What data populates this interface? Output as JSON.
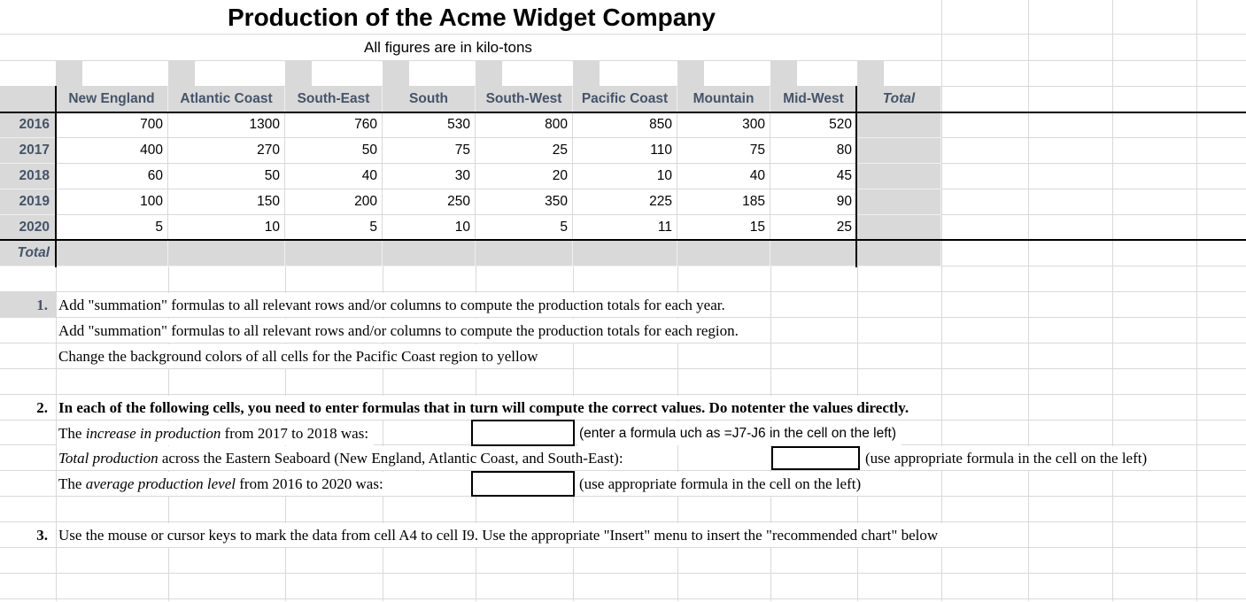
{
  "title": "Production of the Acme Widget Company",
  "subtitle": "All figures are in kilo-tons",
  "table": {
    "columns": [
      "New England",
      "Atlantic Coast",
      "South-East",
      "South",
      "South-West",
      "Pacific Coast",
      "Mountain",
      "Mid-West"
    ],
    "total_column_label": "Total",
    "total_row_label": "Total",
    "rows": [
      {
        "year": "2016",
        "values": [
          "700",
          "1300",
          "760",
          "530",
          "800",
          "850",
          "300",
          "520"
        ]
      },
      {
        "year": "2017",
        "values": [
          "400",
          "270",
          "50",
          "75",
          "25",
          "110",
          "75",
          "80"
        ]
      },
      {
        "year": "2018",
        "values": [
          "60",
          "50",
          "40",
          "30",
          "20",
          "10",
          "40",
          "45"
        ]
      },
      {
        "year": "2019",
        "values": [
          "100",
          "150",
          "200",
          "250",
          "350",
          "225",
          "185",
          "90"
        ]
      },
      {
        "year": "2020",
        "values": [
          "5",
          "10",
          "5",
          "10",
          "5",
          "11",
          "15",
          "25"
        ]
      }
    ]
  },
  "instructions": {
    "item1": {
      "number": "1.",
      "line1": "Add \"summation\" formulas to all relevant rows and/or columns to compute the production totals for each year.",
      "line2": "Add \"summation\" formulas to all relevant rows and/or columns to compute the production totals for each region.",
      "line3": "Change the background colors of all cells for the Pacific Coast region to yellow"
    },
    "item2": {
      "number": "2.",
      "header": "In each of the following cells, you need to enter formulas that in turn will compute the correct values. Do notenter the values directly.",
      "row1": {
        "pre": "The ",
        "italic": "increase in production",
        "post": " from 2017 to 2018 was:",
        "note": "(enter a formula uch as =J7-J6 in the cell on the left)"
      },
      "row2": {
        "italic": "Total production",
        "post": " across the Eastern Seaboard (New England, Atlantic Coast, and South-East):",
        "note": "(use appropriate formula in the cell on the left)"
      },
      "row3": {
        "pre": "The ",
        "italic": "average production level",
        "post": " from 2016 to 2020 was:",
        "note": "(use appropriate formula in the cell on the left)"
      }
    },
    "item3": {
      "number": "3.",
      "text": "Use the mouse or cursor keys to mark the data from cell A4 to cell I9. Use the appropriate \"Insert\" menu to insert the \"recommended chart\" below"
    }
  },
  "inputs": {
    "increase_value": "",
    "total_eastern_value": "",
    "average_value": ""
  },
  "colors": {
    "header_fill": "#D9D9D9",
    "header_text": "#44546A",
    "gridline": "#D9D9D9",
    "table_border": "#000000"
  }
}
